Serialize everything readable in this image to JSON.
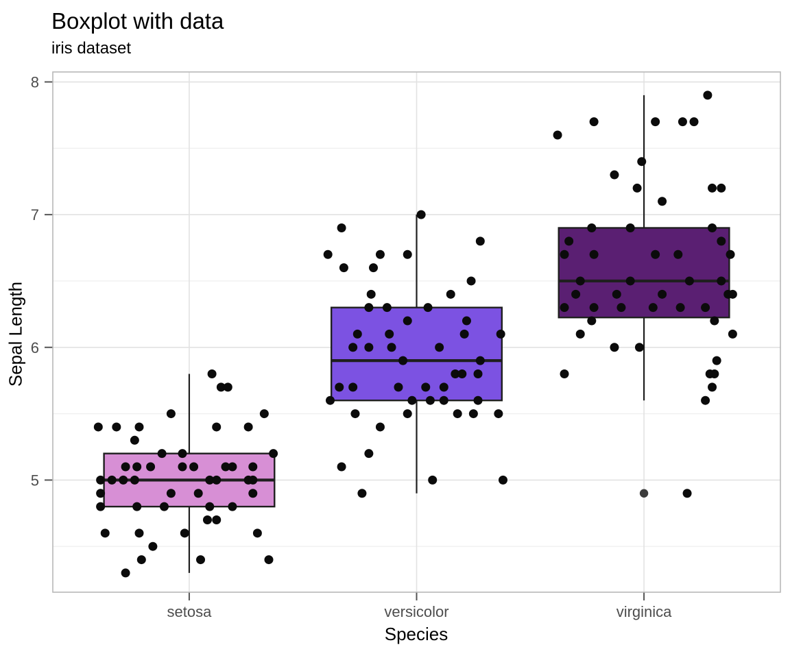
{
  "header": {
    "title": "Boxplot with data",
    "subtitle": "iris dataset"
  },
  "chart_data": {
    "type": "boxplot",
    "title": "Boxplot with data",
    "subtitle": "iris dataset",
    "xlabel": "Species",
    "ylabel": "Sepal Length",
    "categories": [
      "setosa",
      "versicolor",
      "virginica"
    ],
    "y_ticks": [
      5,
      6,
      7,
      8
    ],
    "y_minor_gridlines": [
      4.5,
      5.5,
      6.5,
      7.5
    ],
    "ylim": [
      4.155,
      8.075
    ],
    "grid": true,
    "legend_position": "none",
    "colors": {
      "setosa_fill": "#D78FD5",
      "versicolor_fill": "#7C52E2",
      "virginica_fill": "#5A1F72",
      "box_stroke": "#1f1f1f",
      "point": "#0b0b0b",
      "outlier_point": "#3c3c3c",
      "grid_major": "#e2e2e2",
      "grid_minor": "#f0f0f0",
      "panel_border": "#b8b8b8",
      "tick_mark": "#555555",
      "axis_text": "#4d4d4d"
    },
    "boxes": [
      {
        "species": "setosa",
        "q1": 4.8,
        "median": 5.0,
        "q3": 5.2,
        "whisker_low": 4.3,
        "whisker_high": 5.8,
        "outliers": []
      },
      {
        "species": "versicolor",
        "q1": 5.6,
        "median": 5.9,
        "q3": 6.3,
        "whisker_low": 4.9,
        "whisker_high": 7.0,
        "outliers": []
      },
      {
        "species": "virginica",
        "q1": 6.225,
        "median": 6.5,
        "q3": 6.9,
        "whisker_low": 5.6,
        "whisker_high": 7.9,
        "outliers": [
          4.9
        ]
      }
    ],
    "points": {
      "setosa": [
        [
          0.1,
          5.8
        ],
        [
          0.14,
          5.7
        ],
        [
          0.17,
          5.7
        ],
        [
          -0.08,
          5.5
        ],
        [
          0.33,
          5.5
        ],
        [
          -0.4,
          5.4
        ],
        [
          -0.32,
          5.4
        ],
        [
          -0.22,
          5.4
        ],
        [
          0.12,
          5.4
        ],
        [
          0.26,
          5.4
        ],
        [
          -0.24,
          5.3
        ],
        [
          -0.03,
          5.2
        ],
        [
          0.37,
          5.2
        ],
        [
          -0.12,
          5.2
        ],
        [
          -0.28,
          5.1
        ],
        [
          -0.23,
          5.1
        ],
        [
          -0.17,
          5.1
        ],
        [
          -0.03,
          5.1
        ],
        [
          0.02,
          5.1
        ],
        [
          0.16,
          5.1
        ],
        [
          0.19,
          5.1
        ],
        [
          0.28,
          5.1
        ],
        [
          -0.39,
          5.0
        ],
        [
          -0.34,
          5.0
        ],
        [
          -0.29,
          5.0
        ],
        [
          -0.24,
          5.0
        ],
        [
          0.09,
          5.0
        ],
        [
          0.12,
          5.0
        ],
        [
          0.26,
          5.0
        ],
        [
          0.28,
          5.0
        ],
        [
          -0.39,
          4.9
        ],
        [
          -0.08,
          4.9
        ],
        [
          0.04,
          4.9
        ],
        [
          0.28,
          4.9
        ],
        [
          -0.39,
          4.8
        ],
        [
          -0.23,
          4.8
        ],
        [
          -0.11,
          4.8
        ],
        [
          0.09,
          4.8
        ],
        [
          0.19,
          4.8
        ],
        [
          0.08,
          4.7
        ],
        [
          0.12,
          4.7
        ],
        [
          -0.37,
          4.6
        ],
        [
          -0.22,
          4.6
        ],
        [
          -0.02,
          4.6
        ],
        [
          0.3,
          4.6
        ],
        [
          -0.16,
          4.5
        ],
        [
          -0.21,
          4.4
        ],
        [
          0.05,
          4.4
        ],
        [
          0.35,
          4.4
        ],
        [
          -0.28,
          4.3
        ]
      ],
      "versicolor": [
        [
          0.02,
          7.0
        ],
        [
          -0.33,
          6.9
        ],
        [
          0.28,
          6.8
        ],
        [
          -0.39,
          6.7
        ],
        [
          -0.16,
          6.7
        ],
        [
          -0.04,
          6.7
        ],
        [
          -0.32,
          6.6
        ],
        [
          -0.19,
          6.6
        ],
        [
          0.24,
          6.5
        ],
        [
          -0.2,
          6.4
        ],
        [
          0.15,
          6.4
        ],
        [
          -0.21,
          6.3
        ],
        [
          -0.13,
          6.3
        ],
        [
          0.05,
          6.3
        ],
        [
          -0.04,
          6.2
        ],
        [
          0.22,
          6.2
        ],
        [
          -0.26,
          6.1
        ],
        [
          -0.12,
          6.1
        ],
        [
          0.21,
          6.1
        ],
        [
          0.37,
          6.1
        ],
        [
          -0.28,
          6.0
        ],
        [
          -0.21,
          6.0
        ],
        [
          -0.11,
          6.0
        ],
        [
          0.1,
          6.0
        ],
        [
          -0.06,
          5.9
        ],
        [
          0.28,
          5.9
        ],
        [
          0.17,
          5.8
        ],
        [
          0.2,
          5.8
        ],
        [
          0.27,
          5.8
        ],
        [
          -0.34,
          5.7
        ],
        [
          -0.28,
          5.7
        ],
        [
          -0.08,
          5.7
        ],
        [
          0.04,
          5.7
        ],
        [
          0.12,
          5.7
        ],
        [
          -0.38,
          5.6
        ],
        [
          -0.02,
          5.6
        ],
        [
          0.06,
          5.6
        ],
        [
          0.12,
          5.6
        ],
        [
          0.27,
          5.6
        ],
        [
          -0.27,
          5.5
        ],
        [
          -0.04,
          5.5
        ],
        [
          0.18,
          5.5
        ],
        [
          0.25,
          5.5
        ],
        [
          0.36,
          5.5
        ],
        [
          -0.16,
          5.4
        ],
        [
          -0.21,
          5.2
        ],
        [
          -0.33,
          5.1
        ],
        [
          0.07,
          5.0
        ],
        [
          0.38,
          5.0
        ],
        [
          -0.24,
          4.9
        ]
      ],
      "virginica": [
        [
          0.28,
          7.9
        ],
        [
          -0.22,
          7.7
        ],
        [
          0.17,
          7.7
        ],
        [
          0.22,
          7.7
        ],
        [
          0.05,
          7.7
        ],
        [
          -0.38,
          7.6
        ],
        [
          -0.01,
          7.4
        ],
        [
          -0.13,
          7.3
        ],
        [
          -0.03,
          7.2
        ],
        [
          0.3,
          7.2
        ],
        [
          0.34,
          7.2
        ],
        [
          0.08,
          7.1
        ],
        [
          -0.23,
          6.9
        ],
        [
          -0.06,
          6.9
        ],
        [
          0.3,
          6.9
        ],
        [
          -0.33,
          6.8
        ],
        [
          0.34,
          6.8
        ],
        [
          -0.35,
          6.7
        ],
        [
          -0.22,
          6.7
        ],
        [
          0.05,
          6.7
        ],
        [
          0.15,
          6.7
        ],
        [
          0.38,
          6.7
        ],
        [
          -0.28,
          6.5
        ],
        [
          -0.06,
          6.5
        ],
        [
          0.2,
          6.5
        ],
        [
          0.34,
          6.5
        ],
        [
          -0.3,
          6.4
        ],
        [
          -0.12,
          6.4
        ],
        [
          0.08,
          6.4
        ],
        [
          0.37,
          6.4
        ],
        [
          0.39,
          6.4
        ],
        [
          -0.35,
          6.3
        ],
        [
          -0.22,
          6.3
        ],
        [
          -0.1,
          6.3
        ],
        [
          0.04,
          6.3
        ],
        [
          0.16,
          6.3
        ],
        [
          0.27,
          6.3
        ],
        [
          -0.23,
          6.2
        ],
        [
          0.31,
          6.2
        ],
        [
          -0.28,
          6.1
        ],
        [
          0.39,
          6.1
        ],
        [
          -0.13,
          6.0
        ],
        [
          -0.02,
          6.0
        ],
        [
          0.32,
          5.9
        ],
        [
          -0.35,
          5.8
        ],
        [
          0.29,
          5.8
        ],
        [
          0.31,
          5.8
        ],
        [
          0.3,
          5.7
        ],
        [
          0.27,
          5.6
        ],
        [
          0.19,
          4.9
        ]
      ]
    }
  }
}
